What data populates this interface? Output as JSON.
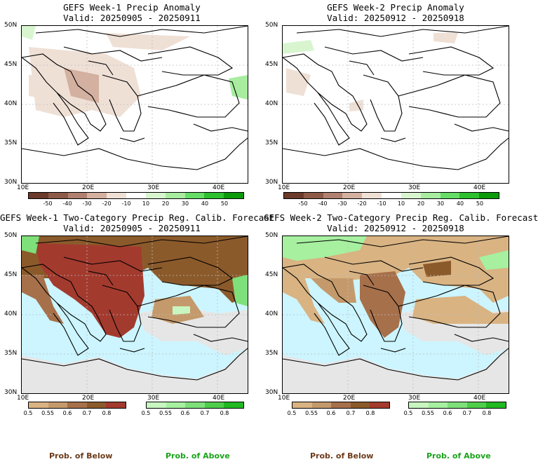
{
  "panels": [
    {
      "title": "GEFS Week-1 Precip Anomaly",
      "valid": "Valid: 20250905 - 20250911",
      "lat_labels": [
        "50N",
        "45N",
        "40N",
        "35N",
        "30N"
      ],
      "lon_labels": [
        "10E",
        "20E",
        "30E",
        "40E"
      ]
    },
    {
      "title": "GEFS Week-2 Precip Anomaly",
      "valid": "Valid: 20250912 - 20250918",
      "lat_labels": [
        "50N",
        "45N",
        "40N",
        "35N",
        "30N"
      ],
      "lon_labels": [
        "10E",
        "20E",
        "30E",
        "40E"
      ]
    },
    {
      "title": "GEFS Week-1 Two-Category Precip Reg. Calib. Forecast",
      "valid": "Valid: 20250905 - 20250911",
      "lat_labels": [
        "50N",
        "45N",
        "40N",
        "35N",
        "30N"
      ],
      "lon_labels": [
        "10E",
        "20E",
        "30E",
        "40E"
      ]
    },
    {
      "title": "GEFS Week-2 Two-Category Precip Reg. Calib. Forecast",
      "valid": "Valid: 20250912 - 20250918",
      "lat_labels": [
        "50N",
        "45N",
        "40N",
        "35N",
        "30N"
      ],
      "lon_labels": [
        "10E",
        "20E",
        "30E",
        "40E"
      ]
    }
  ],
  "anomaly_scale": {
    "labels": [
      "-50",
      "-40",
      "-30",
      "-20",
      "-10",
      "10",
      "20",
      "30",
      "40",
      "50"
    ],
    "colors": [
      "#6b3a2a",
      "#8e5a48",
      "#b08070",
      "#d4b0a0",
      "#efe0d6",
      "#ffffff",
      "#d8f5d0",
      "#a8eca0",
      "#66dd66",
      "#2ec02e",
      "#0a9a0a"
    ]
  },
  "prob_scale": {
    "below_labels": [
      "0.5",
      "0.55",
      "0.6",
      "0.7",
      "0.8"
    ],
    "below_colors": [
      "#d9b382",
      "#c49a6c",
      "#a6704b",
      "#8b5a2b",
      "#a33a2e"
    ],
    "above_labels": [
      "0.5",
      "0.55",
      "0.6",
      "0.7",
      "0.8"
    ],
    "above_colors": [
      "#c8f5c0",
      "#a6f0a0",
      "#7ee07a",
      "#4ece4a",
      "#22b822"
    ],
    "below_title": "Prob. of Below",
    "above_title": "Prob. of Above",
    "below_color": "#6b3a1a",
    "above_color": "#1aa31a"
  },
  "colors": {
    "sea_light_blue": "#ccf5ff",
    "land_gray": "#e6e6e6"
  }
}
